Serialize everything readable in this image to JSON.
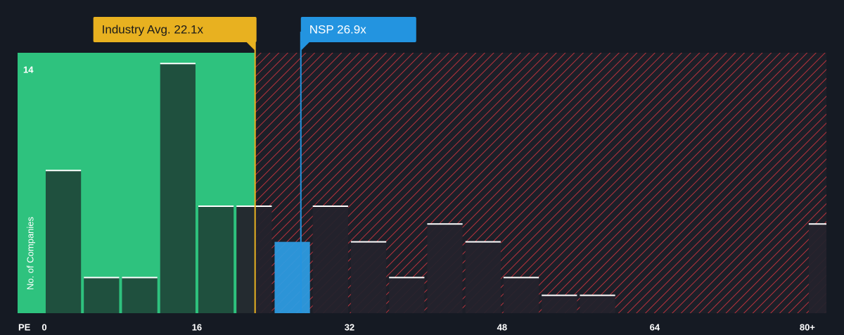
{
  "chart_data": {
    "type": "histogram",
    "xlabel": "PE",
    "ylabel": "No. of Companies",
    "bins": [
      0,
      4,
      8,
      12,
      16,
      20,
      24,
      28,
      32,
      36,
      40,
      44,
      48,
      52,
      56,
      60,
      64,
      68,
      72,
      76,
      80,
      84
    ],
    "values": [
      8,
      2,
      2,
      14,
      6,
      6,
      4,
      6,
      4,
      2,
      5,
      4,
      2,
      1,
      1,
      0,
      0,
      0,
      0,
      0,
      5
    ],
    "xlim": [
      -2.8,
      82
    ],
    "ylim": [
      0,
      14.6
    ],
    "xticks": [
      0,
      16,
      32,
      48,
      64,
      {
        "value": 80,
        "label": "80+"
      }
    ],
    "yticks": [
      14
    ],
    "annotations": [
      {
        "label": "Industry Avg. 22.1x",
        "value": 22.1,
        "color": "#e8b120"
      },
      {
        "label": "NSP 26.9x",
        "value": 26.9,
        "color": "#2394e0"
      }
    ]
  }
}
